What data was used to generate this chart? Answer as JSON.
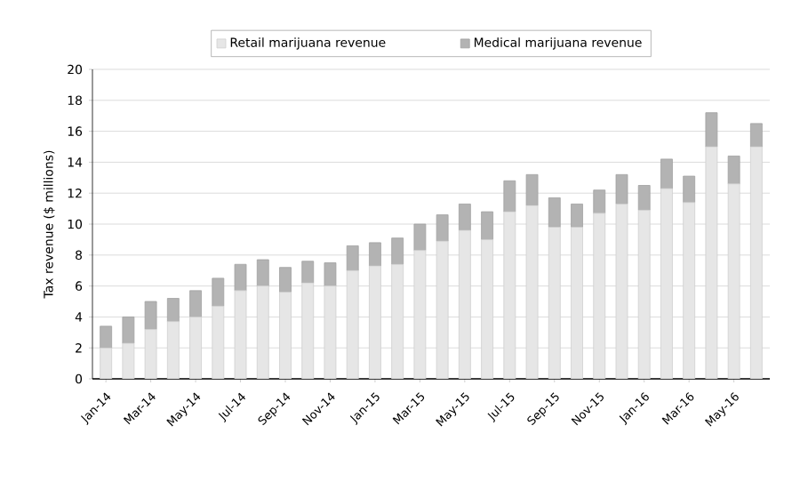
{
  "chart_data": {
    "type": "bar",
    "stacked": true,
    "ylabel": "Tax revenue ($ millions)",
    "categories": [
      "Jan-14",
      null,
      "Mar-14",
      null,
      "May-14",
      null,
      "Jul-14",
      null,
      "Sep-14",
      null,
      "Nov-14",
      null,
      "Jan-15",
      null,
      "Mar-15",
      null,
      "May-15",
      null,
      "Jul-15",
      null,
      "Sep-15",
      null,
      "Nov-15",
      null,
      "Jan-16",
      null,
      "Mar-16",
      null,
      "May-16",
      null
    ],
    "series": [
      {
        "name": "Retail marijuana revenue",
        "color": "#e6e6e6",
        "values": [
          2.0,
          2.3,
          3.2,
          3.7,
          4.0,
          4.7,
          5.7,
          6.0,
          5.6,
          6.2,
          6.0,
          7.0,
          7.3,
          7.4,
          8.3,
          8.9,
          9.6,
          9.0,
          10.8,
          11.2,
          9.8,
          9.8,
          10.7,
          11.3,
          10.9,
          12.3,
          11.4,
          15.0,
          12.6,
          15.0
        ]
      },
      {
        "name": "Medical marijuana revenue",
        "color": "#b3b3b3",
        "values": [
          1.4,
          1.7,
          1.8,
          1.5,
          1.7,
          1.8,
          1.7,
          1.7,
          1.6,
          1.4,
          1.5,
          1.6,
          1.5,
          1.7,
          1.7,
          1.7,
          1.7,
          1.8,
          2.0,
          2.0,
          1.9,
          1.5,
          1.5,
          1.9,
          1.6,
          1.9,
          1.7,
          2.2,
          1.8,
          1.5
        ]
      }
    ],
    "ylim": [
      0,
      20
    ],
    "yticks": [
      0,
      2,
      4,
      6,
      8,
      10,
      12,
      14,
      16,
      18,
      20
    ],
    "grid": "y",
    "legend": "top"
  }
}
